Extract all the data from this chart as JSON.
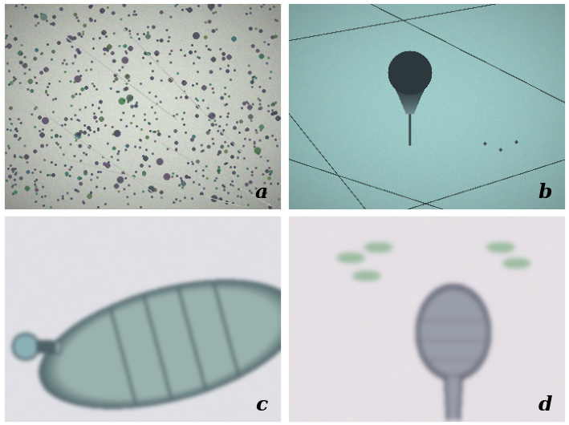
{
  "figsize": [
    7.09,
    5.3
  ],
  "dpi": 100,
  "panel_a": {
    "bg_r": 0.84,
    "bg_g": 0.86,
    "bg_b": 0.82,
    "spore_color": [
      0.25,
      0.3,
      0.28
    ],
    "n_spores": 600,
    "label": "a"
  },
  "panel_b": {
    "bg_r": 0.62,
    "bg_g": 0.8,
    "bg_b": 0.79,
    "label": "b"
  },
  "panel_c": {
    "bg_r": 0.88,
    "bg_g": 0.88,
    "bg_b": 0.9,
    "label": "c"
  },
  "panel_d": {
    "bg_r": 0.9,
    "bg_g": 0.88,
    "bg_b": 0.9,
    "label": "d"
  },
  "label_fontsize": 18,
  "label_color": "black",
  "label_fontstyle": "italic",
  "label_fontweight": "bold",
  "border_color": "white",
  "border_width": 2
}
